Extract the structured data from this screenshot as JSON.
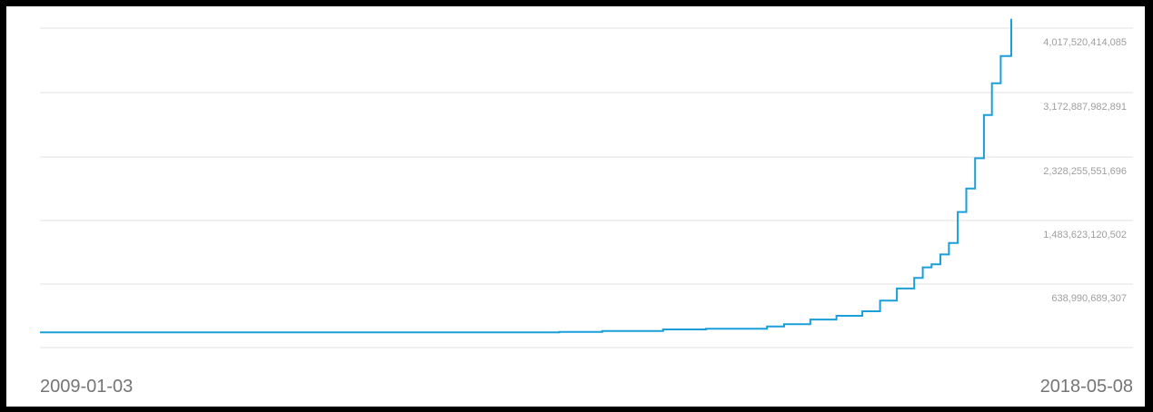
{
  "chart_data": {
    "type": "line",
    "x_range": [
      "2009-01-03",
      "2018-05-08"
    ],
    "x_tick_labels": [
      "2009-01-03",
      "2018-05-08"
    ],
    "y_tick_labels": [
      "638,990,689,307",
      "1,483,623,120,502",
      "2,328,255,551,696",
      "3,172,887,982,891",
      "4,017,520,414,085"
    ],
    "y_ticks": [
      638990689307,
      1483623120502,
      2328255551696,
      3172887982891,
      4017520414085
    ],
    "grid": true,
    "line_color": "#1a9fd9",
    "series": [
      {
        "x": [
          "2009-01-03",
          "2010-01-01",
          "2011-01-01",
          "2012-01-01",
          "2013-01-01",
          "2013-06-01",
          "2014-01-01",
          "2014-06-01",
          "2015-01-01",
          "2015-06-01",
          "2016-01-01",
          "2016-03-01",
          "2016-06-01",
          "2016-09-01",
          "2016-12-01",
          "2017-02-01",
          "2017-04-01",
          "2017-06-01",
          "2017-07-01",
          "2017-08-01",
          "2017-09-01",
          "2017-10-01",
          "2017-11-01",
          "2017-12-01",
          "2018-01-01",
          "2018-02-01",
          "2018-03-01",
          "2018-04-01",
          "2018-05-08"
        ],
        "y": [
          1,
          1,
          1,
          1,
          1,
          2000000000,
          6000000000,
          20000000000,
          40000000000,
          50000000000,
          80000000000,
          110000000000,
          170000000000,
          220000000000,
          280000000000,
          420000000000,
          580000000000,
          720000000000,
          860000000000,
          900000000000,
          1030000000000,
          1180000000000,
          1590000000000,
          1900000000000,
          2300000000000,
          2870000000000,
          3290000000000,
          3650000000000,
          4140000000000
        ]
      }
    ]
  }
}
